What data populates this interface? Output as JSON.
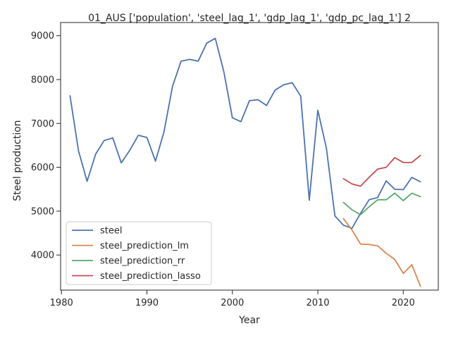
{
  "chart_data": {
    "type": "line",
    "title": "01_AUS ['population', 'steel_lag_1', 'gdp_lag_1', 'gdp_pc_lag_1'] 2",
    "xlabel": "Year",
    "ylabel": "Steel production",
    "xlim": [
      1979.9,
      2024.1
    ],
    "ylim": [
      3200,
      9300
    ],
    "xticks": [
      1980,
      1990,
      2000,
      2010,
      2020
    ],
    "yticks": [
      4000,
      5000,
      6000,
      7000,
      8000,
      9000
    ],
    "grid": false,
    "legend_position": "lower-left",
    "series": [
      {
        "name": "steel",
        "color": "#4c72b0",
        "x": [
          1981,
          1982,
          1983,
          1984,
          1985,
          1986,
          1987,
          1988,
          1989,
          1990,
          1991,
          1992,
          1993,
          1994,
          1995,
          1996,
          1997,
          1998,
          1999,
          2000,
          2001,
          2002,
          2003,
          2004,
          2005,
          2006,
          2007,
          2008,
          2009,
          2010,
          2011,
          2012,
          2013,
          2014,
          2015,
          2016,
          2017,
          2018,
          2019,
          2020,
          2021,
          2022
        ],
        "values": [
          7630,
          6370,
          5680,
          6300,
          6610,
          6670,
          6100,
          6390,
          6730,
          6680,
          6140,
          6810,
          7850,
          8420,
          8460,
          8420,
          8830,
          8940,
          8180,
          7130,
          7040,
          7520,
          7540,
          7410,
          7760,
          7880,
          7930,
          7620,
          5250,
          7300,
          6440,
          4890,
          4680,
          4610,
          4950,
          5260,
          5310,
          5690,
          5500,
          5490,
          5770,
          5670
        ]
      },
      {
        "name": "steel_prediction_lm",
        "color": "#dd8452",
        "x": [
          2013,
          2014,
          2015,
          2016,
          2017,
          2018,
          2019,
          2020,
          2021,
          2022
        ],
        "values": [
          4830,
          4570,
          4250,
          4240,
          4210,
          4040,
          3900,
          3580,
          3780,
          3290
        ]
      },
      {
        "name": "steel_prediction_rr",
        "color": "#55a868",
        "x": [
          2013,
          2014,
          2015,
          2016,
          2017,
          2018,
          2019,
          2020,
          2021,
          2022
        ],
        "values": [
          5200,
          5030,
          4920,
          5100,
          5260,
          5260,
          5410,
          5240,
          5410,
          5330
        ]
      },
      {
        "name": "steel_prediction_lasso",
        "color": "#c44e52",
        "x": [
          2013,
          2014,
          2015,
          2016,
          2017,
          2018,
          2019,
          2020,
          2021,
          2022
        ],
        "values": [
          5740,
          5620,
          5570,
          5770,
          5960,
          6000,
          6220,
          6110,
          6110,
          6270
        ]
      }
    ]
  }
}
